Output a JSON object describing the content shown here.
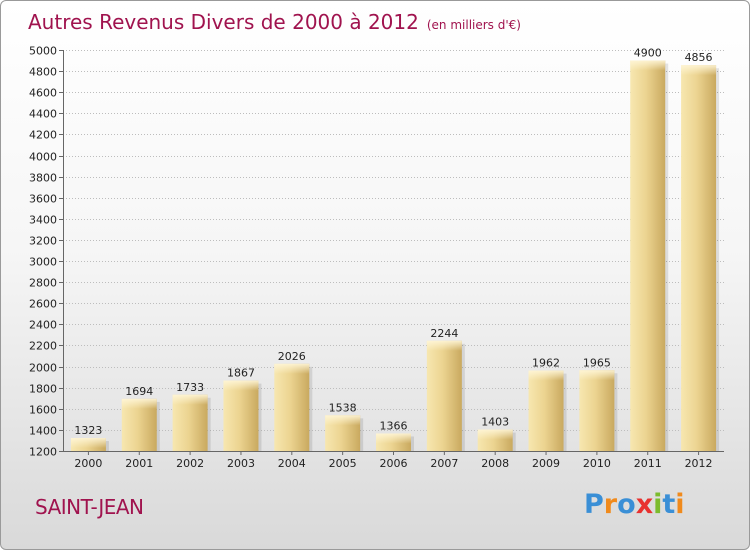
{
  "title": "Autres Revenus Divers de 2000 à 2012",
  "subtitle": "(en milliers d'€)",
  "commune": "SAINT-JEAN",
  "brand": {
    "text": "Proxiti",
    "letters": [
      "P",
      "r",
      "o",
      "x",
      "i",
      "t",
      "i"
    ],
    "colors": [
      "#3a8fd6",
      "#f08a1c",
      "#3a8fd6",
      "#e8312f",
      "#7cbc2e",
      "#3a8fd6",
      "#f08a1c"
    ]
  },
  "colors": {
    "bar_light": "#f6e3a4",
    "bar_dark": "#c8a860",
    "title": "#a0134e",
    "grid": "#bdbdbd"
  },
  "chart_data": {
    "type": "bar",
    "title": "Autres Revenus Divers de 2000 à 2012",
    "subtitle": "(en milliers d'€)",
    "xlabel": "",
    "ylabel": "",
    "categories": [
      "2000",
      "2001",
      "2002",
      "2003",
      "2004",
      "2005",
      "2006",
      "2007",
      "2008",
      "2009",
      "2010",
      "2011",
      "2012"
    ],
    "values": [
      1323,
      1694,
      1733,
      1867,
      2026,
      1538,
      1366,
      2244,
      1403,
      1962,
      1965,
      4900,
      4856
    ],
    "ylim": [
      1200,
      5000
    ],
    "yticks": [
      1200,
      1400,
      1600,
      1800,
      2000,
      2200,
      2400,
      2600,
      2800,
      3000,
      3200,
      3400,
      3600,
      3800,
      4000,
      4200,
      4400,
      4600,
      4800,
      5000
    ],
    "grid": true,
    "legend": "none"
  }
}
